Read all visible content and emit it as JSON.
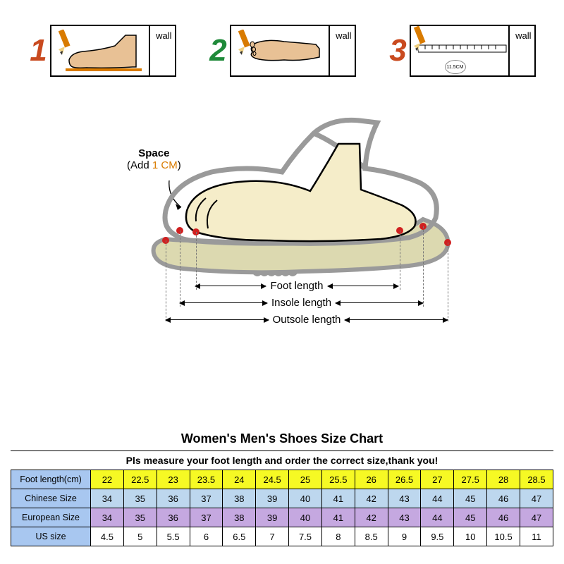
{
  "steps": {
    "numbers": [
      "1",
      "2",
      "3"
    ],
    "number_colors": [
      "#c94a1f",
      "#1f8a3a",
      "#c94a1f"
    ],
    "wall_label": "wall",
    "step3_circle": "11.5CM"
  },
  "shoe_diagram": {
    "space_label_bold": "Space",
    "space_label_sub_prefix": "(Add ",
    "space_label_highlight": "1 CM",
    "space_label_sub_suffix": ")",
    "highlight_color": "#d97b00",
    "foot_fill": "#f5edc9",
    "shoe_outline": "#9a9a9a",
    "sole_fill": "#dcd9b0",
    "dot_color": "#d02020",
    "measurements": {
      "foot": "Foot length",
      "insole": "Insole length",
      "outsole": "Outsole length"
    }
  },
  "chart": {
    "title": "Women's Men's Shoes Size Chart",
    "subtitle": "Pls measure your foot length and order the correct size,thank you!",
    "row_labels": [
      "Foot length(cm)",
      "Chinese Size",
      "European Size",
      "US size"
    ],
    "row_bg_colors": [
      "#f6f924",
      "#bdd7ee",
      "#c5a8e0",
      "#ffffff"
    ],
    "label_bg_colors": [
      "#a8c7f0",
      "#a8c7f0",
      "#a8c7f0",
      "#a8c7f0"
    ],
    "columns": 14,
    "rows": [
      [
        "22",
        "22.5",
        "23",
        "23.5",
        "24",
        "24.5",
        "25",
        "25.5",
        "26",
        "26.5",
        "27",
        "27.5",
        "28",
        "28.5"
      ],
      [
        "34",
        "35",
        "36",
        "37",
        "38",
        "39",
        "40",
        "41",
        "42",
        "43",
        "44",
        "45",
        "46",
        "47"
      ],
      [
        "34",
        "35",
        "36",
        "37",
        "38",
        "39",
        "40",
        "41",
        "42",
        "43",
        "44",
        "45",
        "46",
        "47"
      ],
      [
        "4.5",
        "5",
        "5.5",
        "6",
        "6.5",
        "7",
        "7.5",
        "8",
        "8.5",
        "9",
        "9.5",
        "10",
        "10.5",
        "11"
      ]
    ]
  }
}
